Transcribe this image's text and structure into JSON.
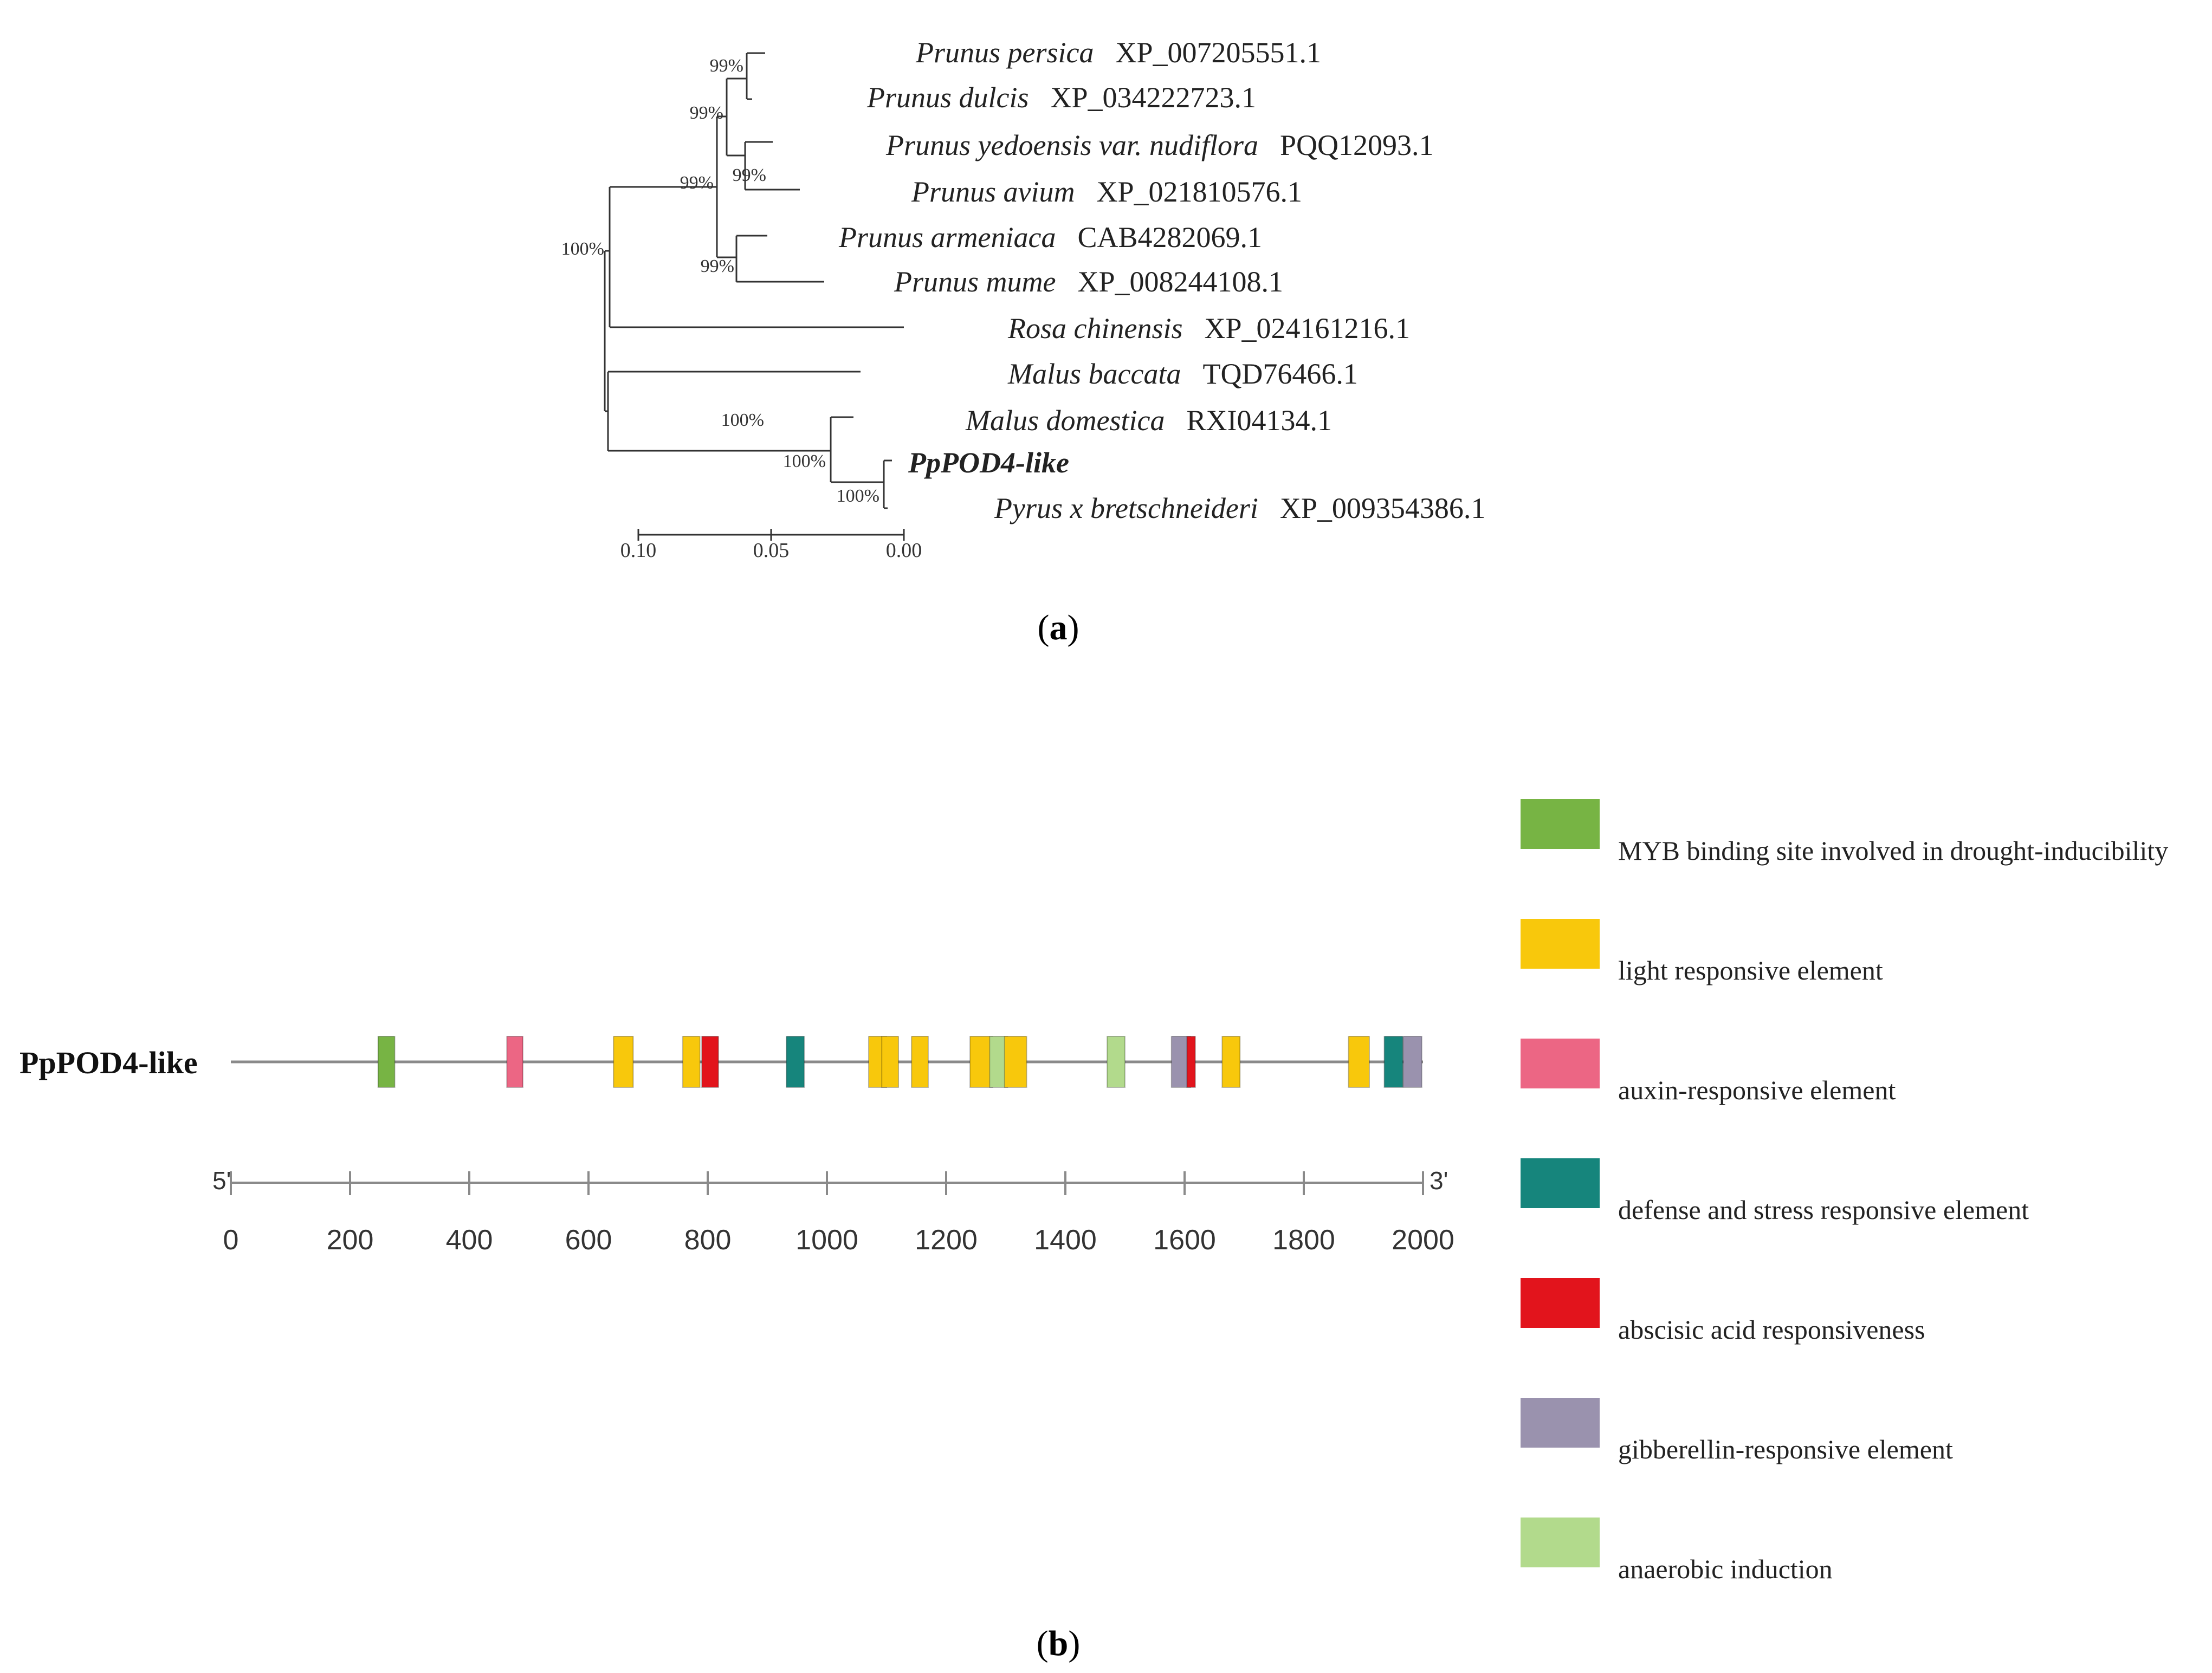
{
  "panel_a": {
    "caption": "(a)",
    "taxa": [
      {
        "species": "Prunus persica",
        "accession": "XP_007205551.1",
        "bold": false
      },
      {
        "species": "Prunus dulcis",
        "accession": "XP_034222723.1",
        "bold": false
      },
      {
        "species": "Prunus yedoensis var. nudiflora",
        "accession": "PQQ12093.1",
        "bold": false
      },
      {
        "species": "Prunus avium",
        "accession": "XP_021810576.1",
        "bold": false
      },
      {
        "species": "Prunus armeniaca",
        "accession": "CAB4282069.1",
        "bold": false
      },
      {
        "species": "Prunus mume",
        "accession": "XP_008244108.1",
        "bold": false
      },
      {
        "species": "Rosa chinensis",
        "accession": "XP_024161216.1",
        "bold": false
      },
      {
        "species": "Malus baccata",
        "accession": "TQD76466.1",
        "bold": false
      },
      {
        "species": "Malus domestica",
        "accession": "RXI04134.1",
        "bold": false
      },
      {
        "species": "PpPOD4-like",
        "accession": "",
        "bold": true
      },
      {
        "species": "Pyrus x bretschneideri",
        "accession": "XP_009354386.1",
        "bold": false
      }
    ],
    "bootstrap": [
      "99%",
      "99%",
      "99%",
      "99%",
      "99%",
      "100%",
      "100%",
      "100%",
      "100%"
    ],
    "scale_ticks": [
      "0.10",
      "0.05",
      "0.00"
    ]
  },
  "panel_b": {
    "caption": "(b)",
    "gene_name": "PpPOD4-like",
    "end5": "5'",
    "end3": "3'",
    "axis_ticks": [
      0,
      200,
      400,
      600,
      800,
      1000,
      1200,
      1400,
      1600,
      1800,
      2000
    ],
    "axis_max": 2000,
    "legend": [
      {
        "key": "myb",
        "label": "MYB binding site involved in drought-inducibility",
        "color": "#77b444"
      },
      {
        "key": "light",
        "label": "light responsive element",
        "color": "#f8c80c"
      },
      {
        "key": "auxin",
        "label": "auxin-responsive element",
        "color": "#ec6684"
      },
      {
        "key": "defense",
        "label": "defense and stress responsive element",
        "color": "#16857c"
      },
      {
        "key": "aba",
        "label": "abscisic acid responsiveness",
        "color": "#e2141c"
      },
      {
        "key": "gib",
        "label": "gibberellin-responsive element",
        "color": "#9a92ae"
      },
      {
        "key": "anaer",
        "label": "anaerobic induction",
        "color": "#b2da8c"
      }
    ],
    "elements": [
      {
        "type": "myb",
        "start": 247,
        "end": 275
      },
      {
        "type": "auxin",
        "start": 463,
        "end": 490
      },
      {
        "type": "light",
        "start": 642,
        "end": 675
      },
      {
        "type": "light",
        "start": 758,
        "end": 787
      },
      {
        "type": "aba",
        "start": 790,
        "end": 818
      },
      {
        "type": "defense",
        "start": 932,
        "end": 962
      },
      {
        "type": "light",
        "start": 1070,
        "end": 1100
      },
      {
        "type": "light",
        "start": 1092,
        "end": 1120
      },
      {
        "type": "light",
        "start": 1142,
        "end": 1170
      },
      {
        "type": "light",
        "start": 1240,
        "end": 1278
      },
      {
        "type": "anaer",
        "start": 1273,
        "end": 1303
      },
      {
        "type": "light",
        "start": 1298,
        "end": 1335
      },
      {
        "type": "anaer",
        "start": 1470,
        "end": 1500
      },
      {
        "type": "gib",
        "start": 1578,
        "end": 1610
      },
      {
        "type": "aba",
        "start": 1604,
        "end": 1618
      },
      {
        "type": "light",
        "start": 1663,
        "end": 1693
      },
      {
        "type": "light",
        "start": 1875,
        "end": 1910
      },
      {
        "type": "defense",
        "start": 1935,
        "end": 1966
      },
      {
        "type": "gib",
        "start": 1967,
        "end": 1998
      }
    ]
  }
}
